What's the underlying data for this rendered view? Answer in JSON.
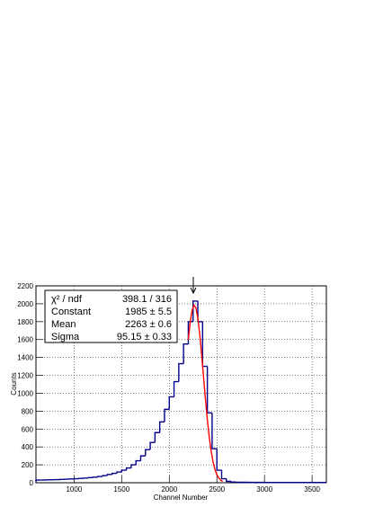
{
  "chart_data": {
    "type": "histogram",
    "x_label": "Channel Number",
    "y_label": "Counts",
    "bins": [
      600,
      650,
      700,
      750,
      800,
      850,
      900,
      950,
      1000,
      1050,
      1100,
      1150,
      1200,
      1250,
      1300,
      1350,
      1400,
      1450,
      1500,
      1550,
      1600,
      1650,
      1700,
      1750,
      1800,
      1850,
      1900,
      1950,
      2000,
      2050,
      2100,
      2150,
      2200,
      2250,
      2300,
      2350,
      2400,
      2450,
      2500,
      2550,
      2600,
      2650,
      2700,
      2750,
      2800,
      2850,
      2900,
      2950,
      3000,
      3050,
      3100,
      3150,
      3200,
      3250,
      3300,
      3350,
      3400,
      3450,
      3500,
      3550,
      3600,
      3650
    ],
    "counts": [
      30,
      30,
      32,
      33,
      35,
      37,
      40,
      42,
      45,
      48,
      52,
      57,
      62,
      70,
      80,
      92,
      105,
      120,
      140,
      165,
      200,
      245,
      300,
      370,
      450,
      560,
      680,
      820,
      960,
      1130,
      1330,
      1550,
      1800,
      2030,
      1800,
      1300,
      780,
      380,
      140,
      45,
      15,
      8,
      6,
      5,
      5,
      4,
      4,
      4,
      3,
      3,
      3,
      3,
      3,
      3,
      3,
      3,
      3,
      3,
      3,
      3,
      3
    ],
    "color": "#00008b",
    "fit": {
      "color": "#ff0000",
      "x": [
        2200,
        2220,
        2240,
        2260,
        2280,
        2300,
        2320,
        2340,
        2360,
        2380,
        2400,
        2420,
        2440,
        2460,
        2480,
        2500,
        2520,
        2540,
        2560
      ],
      "values": [
        1594,
        1793,
        1928,
        1984,
        1954,
        1840,
        1659,
        1431,
        1181,
        932,
        704,
        509,
        352,
        233,
        147,
        89,
        52,
        29,
        15
      ]
    },
    "stat_box": [
      [
        "χ² / ndf",
        "398.1 / 316"
      ],
      [
        "Constant",
        "1985 ± 5.5"
      ],
      [
        "Mean",
        "2263 ± 0.6"
      ],
      [
        "Sigma",
        "95.15 ± 0.33"
      ]
    ],
    "xlim": [
      600,
      3650
    ],
    "ylim": [
      0,
      2200
    ],
    "xticks": [
      1000,
      1500,
      2000,
      2500,
      3000,
      3500
    ],
    "yticks": [
      0,
      200,
      400,
      600,
      800,
      1000,
      1200,
      1400,
      1600,
      1800,
      2000,
      2200
    ],
    "grid": true
  }
}
